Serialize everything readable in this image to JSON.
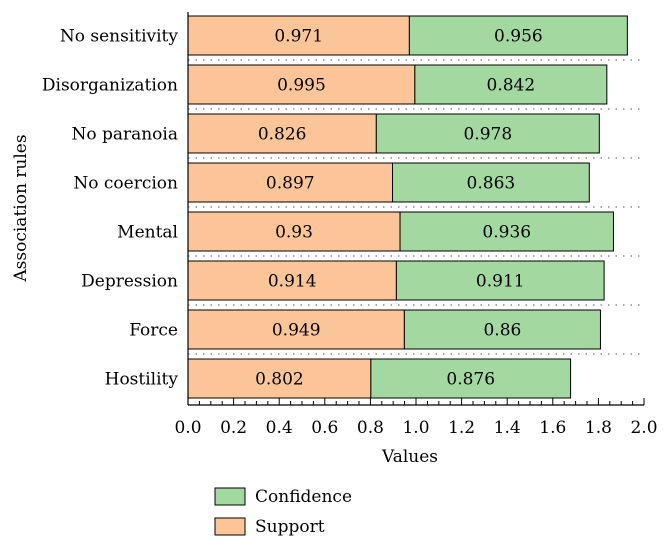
{
  "chart_data": {
    "type": "bar",
    "orientation": "horizontal",
    "stacked": true,
    "title": "",
    "xlabel": "Values",
    "ylabel": "Association rules",
    "xlim": [
      0.0,
      2.0
    ],
    "xticks": [
      "0.0",
      "0.2",
      "0.4",
      "0.6",
      "0.8",
      "1.0",
      "1.2",
      "1.4",
      "1.6",
      "1.8",
      "2.0"
    ],
    "categories": [
      "No sensitivity",
      "Disorganization",
      "No paranoia",
      "No coercion",
      "Mental",
      "Depression",
      "Force",
      "Hostility"
    ],
    "series": [
      {
        "name": "Support",
        "color": "#fbc597",
        "values": [
          0.971,
          0.995,
          0.826,
          0.897,
          0.93,
          0.914,
          0.949,
          0.802
        ],
        "labels": [
          "0.971",
          "0.995",
          "0.826",
          "0.897",
          "0.93",
          "0.914",
          "0.949",
          "0.802"
        ]
      },
      {
        "name": "Confidence",
        "color": "#a3d9a1",
        "values": [
          0.956,
          0.842,
          0.978,
          0.863,
          0.936,
          0.911,
          0.86,
          0.876
        ],
        "labels": [
          "0.956",
          "0.842",
          "0.978",
          "0.863",
          "0.936",
          "0.911",
          "0.86",
          "0.876"
        ]
      }
    ],
    "legend": {
      "placement": "bottom",
      "order": [
        "Confidence",
        "Support"
      ]
    },
    "grid": "dotted horizontal lines between bars"
  }
}
